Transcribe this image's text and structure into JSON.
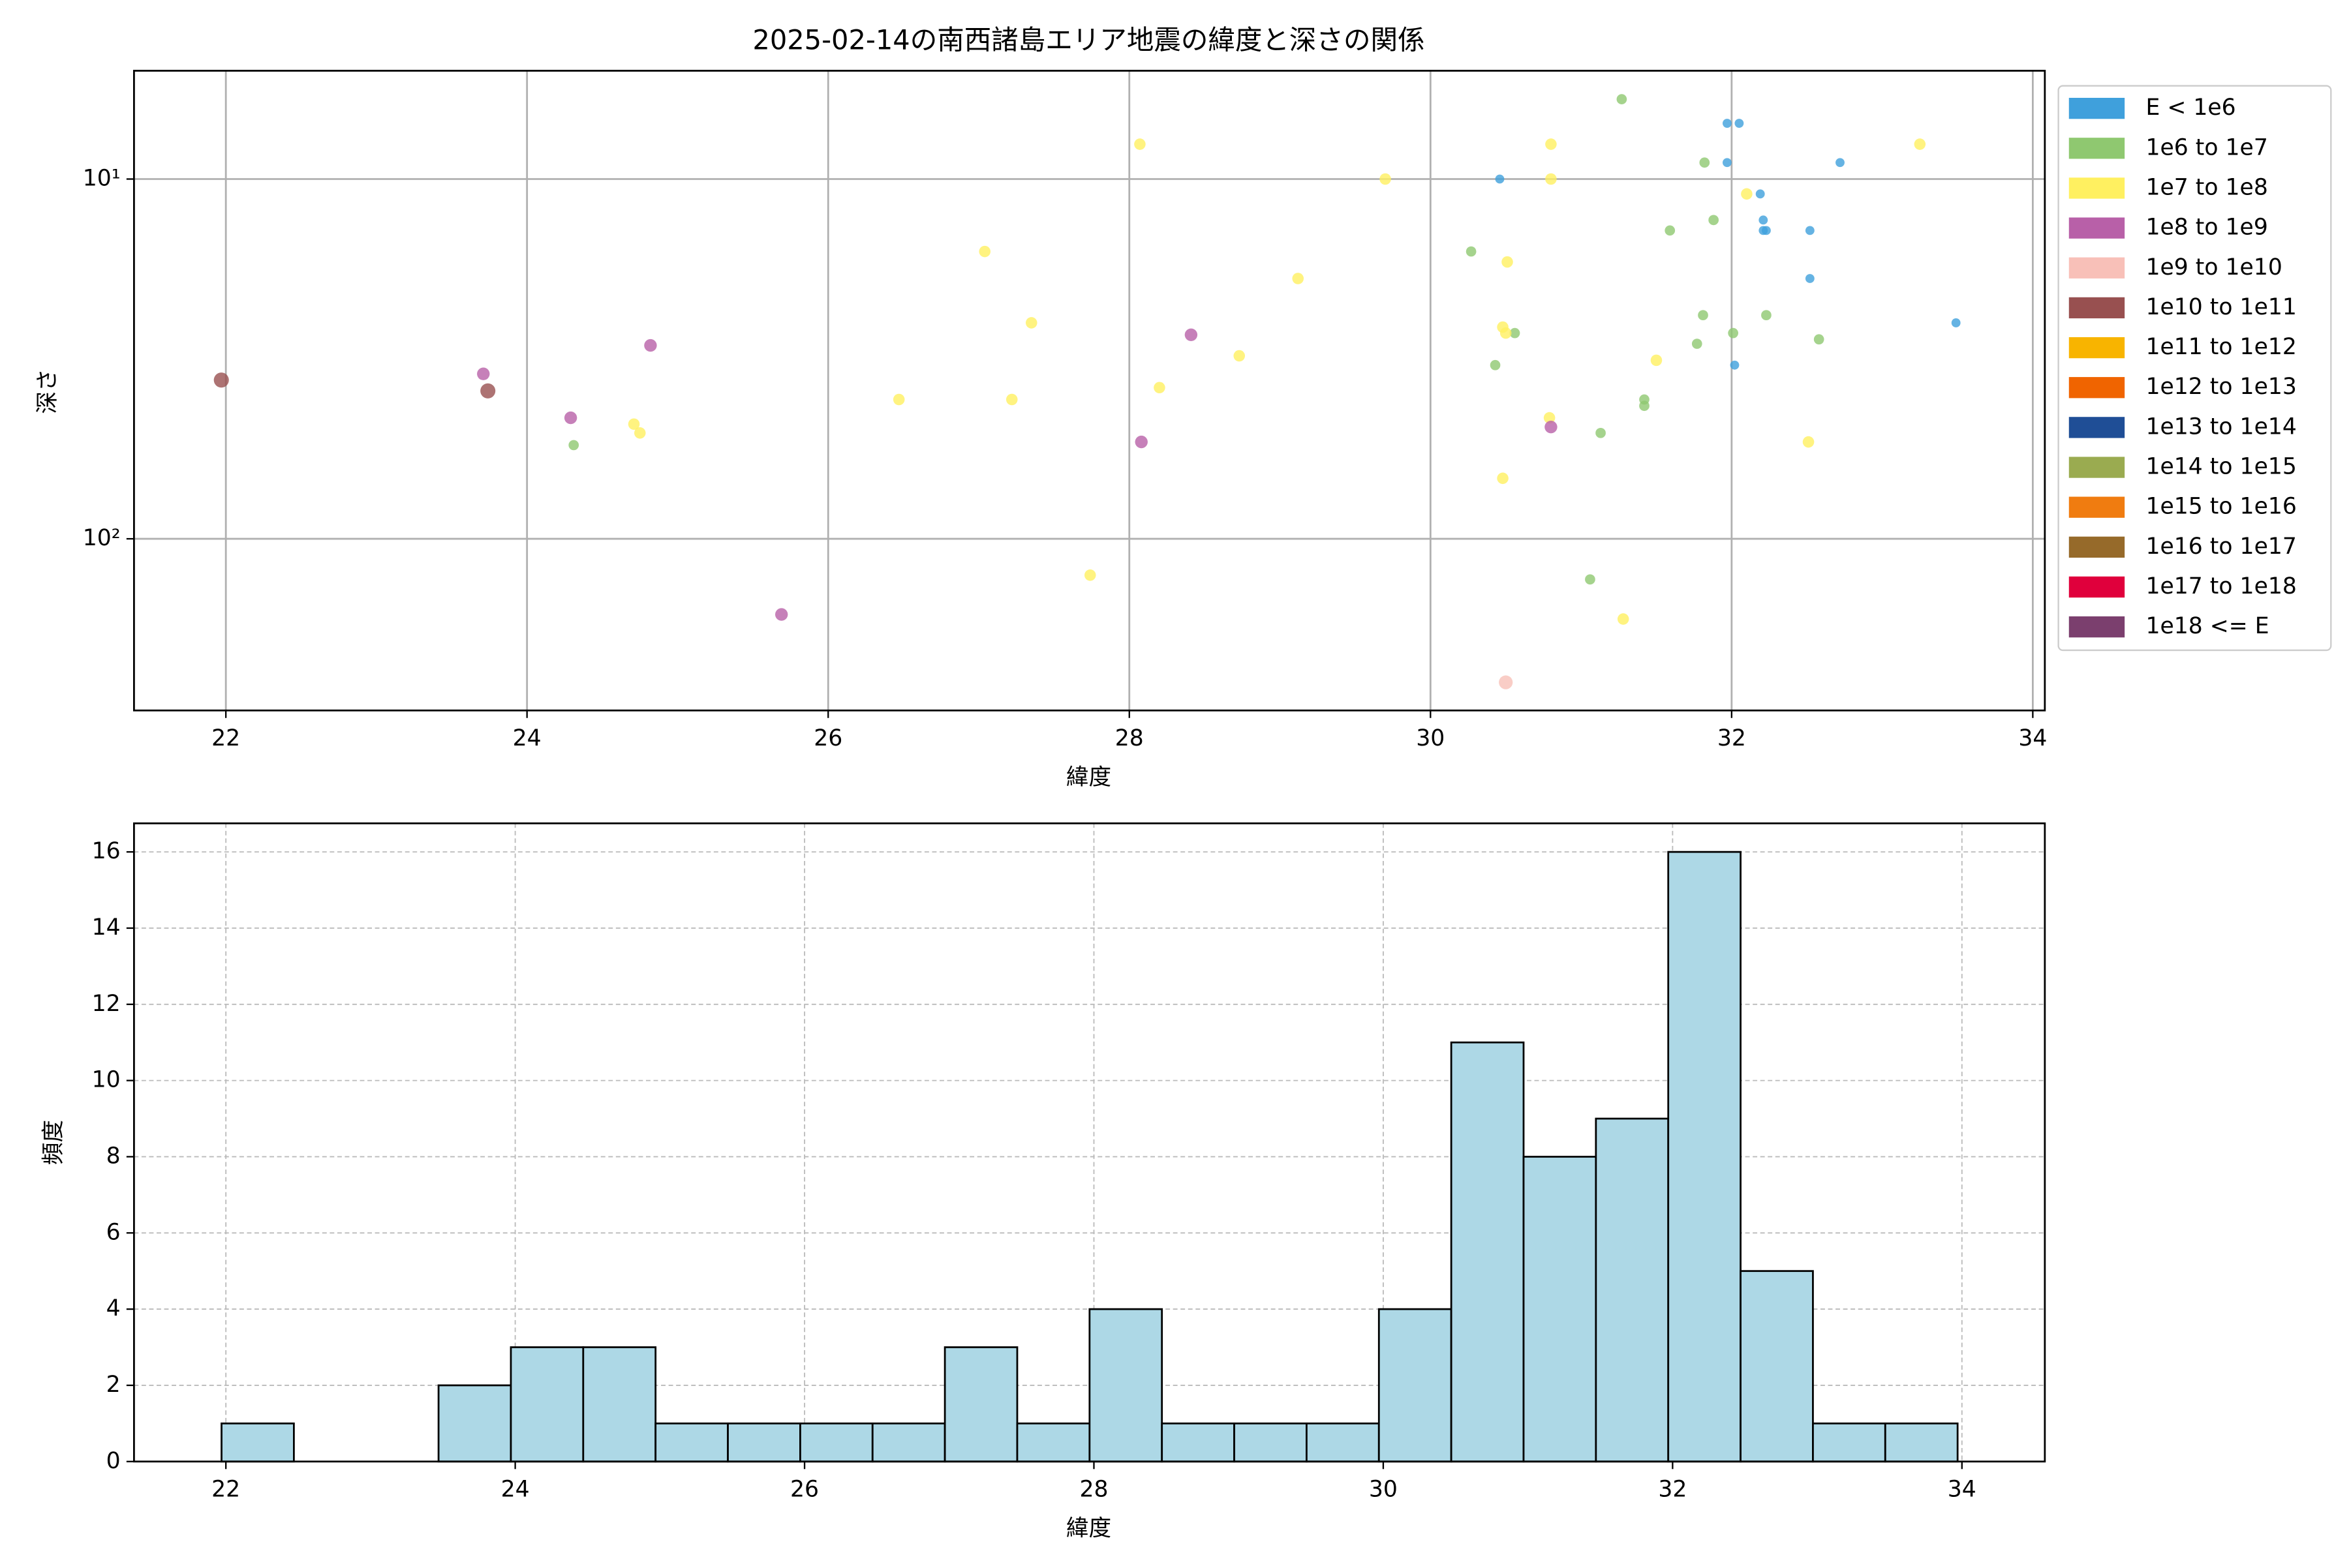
{
  "chart_data": [
    {
      "type": "scatter",
      "title": "2025-02-14の南西諸島エリア地震の緯度と深さの関係",
      "x_label": "緯度",
      "y_label": "深さ",
      "xlim": [
        21.39,
        34.08
      ],
      "xticks": [
        22,
        24,
        26,
        28,
        30,
        32,
        34
      ],
      "ylim": [
        300,
        5
      ],
      "yticks": [
        {
          "value": 10,
          "label": "10¹"
        },
        {
          "value": 100,
          "label": "10²"
        }
      ],
      "log_scale": true,
      "grid": true,
      "legend": "outside right",
      "series": [
        {
          "name": "E < 1e6",
          "color": "#3fa0dc",
          "x": [
            30.46,
            31.97,
            32.05,
            31.97,
            32.19,
            32.21,
            32.21,
            32.23,
            32.72,
            32.52,
            32.52,
            33.49,
            32.02
          ],
          "values": [
            10,
            7.0,
            7.0,
            9.0,
            11.0,
            13.0,
            13.9,
            13.9,
            9.0,
            13.9,
            18.9,
            25.1,
            32.9
          ]
        },
        {
          "name": "1e6 to 1e7",
          "color": "#8fc870",
          "x": [
            31.27,
            31.82,
            30.27,
            31.59,
            31.88,
            31.81,
            32.23,
            30.56,
            32.01,
            31.77,
            32.58,
            30.43,
            31.42,
            31.42,
            31.13,
            24.31,
            31.06
          ],
          "values": [
            6.0,
            9.0,
            15.9,
            13.9,
            13.0,
            23.9,
            23.9,
            26.8,
            26.8,
            28.7,
            27.9,
            32.9,
            41.0,
            42.7,
            50.8,
            54.9,
            129.7
          ]
        },
        {
          "name": "1e7 to 1e8",
          "color": "#fff060",
          "x": [
            28.07,
            30.8,
            33.25,
            29.7,
            30.8,
            32.1,
            27.04,
            30.51,
            29.12,
            27.35,
            30.48,
            30.5,
            28.73,
            31.5,
            26.47,
            27.22,
            28.2,
            30.79,
            24.71,
            24.75,
            32.51,
            30.48,
            27.74,
            31.28
          ],
          "values": [
            8.0,
            8.0,
            8.0,
            10,
            10,
            11.0,
            15.9,
            17.0,
            18.9,
            25.1,
            25.8,
            26.8,
            31.0,
            31.9,
            41.0,
            41.0,
            38.0,
            46.1,
            48.0,
            50.8,
            53.8,
            67.9,
            126.2,
            167.1
          ]
        },
        {
          "name": "1e8 to 1e9",
          "color": "#b860a8",
          "x": [
            24.82,
            28.41,
            23.71,
            24.29,
            30.8,
            28.08,
            25.69
          ],
          "values": [
            29.0,
            27.1,
            34.8,
            46.1,
            48.9,
            53.8,
            162.3
          ]
        },
        {
          "name": "1e9 to 1e10",
          "color": "#f8c0b8",
          "x": [
            30.5
          ],
          "values": [
            250.6
          ]
        },
        {
          "name": "1e10 to 1e11",
          "color": "#985050",
          "x": [
            21.97,
            23.74
          ],
          "values": [
            36.2,
            38.8
          ]
        },
        {
          "name": "1e11 to 1e12",
          "color": "#f8b400",
          "x": [],
          "values": []
        },
        {
          "name": "1e12 to 1e13",
          "color": "#f06400",
          "x": [],
          "values": []
        },
        {
          "name": "1e13 to 1e14",
          "color": "#1f4e96",
          "x": [],
          "values": []
        },
        {
          "name": "1e14 to 1e15",
          "color": "#9aab50",
          "x": [],
          "values": []
        },
        {
          "name": "1e15 to 1e16",
          "color": "#f07c10",
          "x": [],
          "values": []
        },
        {
          "name": "1e16 to 1e17",
          "color": "#966a2a",
          "x": [],
          "values": []
        },
        {
          "name": "1e17 to 1e18",
          "color": "#e0003c",
          "x": [],
          "values": []
        },
        {
          "name": "1e18 <= E",
          "color": "#7b3f6e",
          "x": [],
          "values": []
        }
      ]
    },
    {
      "type": "histogram",
      "x_label": "緯度",
      "y_label": "頻度",
      "color": "#add8e6",
      "grid": true,
      "xlim": [
        21.365,
        34.573
      ],
      "xticks": [
        22,
        24,
        26,
        28,
        30,
        32,
        34
      ],
      "ylim": [
        0,
        16.75
      ],
      "yticks": [
        0,
        2,
        4,
        6,
        8,
        10,
        12,
        14,
        16
      ],
      "bins": [
        21.97,
        22.47,
        22.97,
        23.47,
        23.97,
        24.47,
        24.97,
        25.47,
        25.97,
        26.47,
        26.97,
        27.47,
        27.97,
        28.47,
        28.97,
        29.47,
        29.97,
        30.47,
        30.97,
        31.47,
        31.97,
        32.47,
        32.97,
        33.47,
        33.97
      ],
      "values": [
        1,
        0,
        0,
        2,
        3,
        3,
        1,
        1,
        1,
        1,
        3,
        1,
        4,
        1,
        1,
        1,
        4,
        11,
        8,
        9,
        16,
        5,
        1,
        1
      ]
    }
  ]
}
